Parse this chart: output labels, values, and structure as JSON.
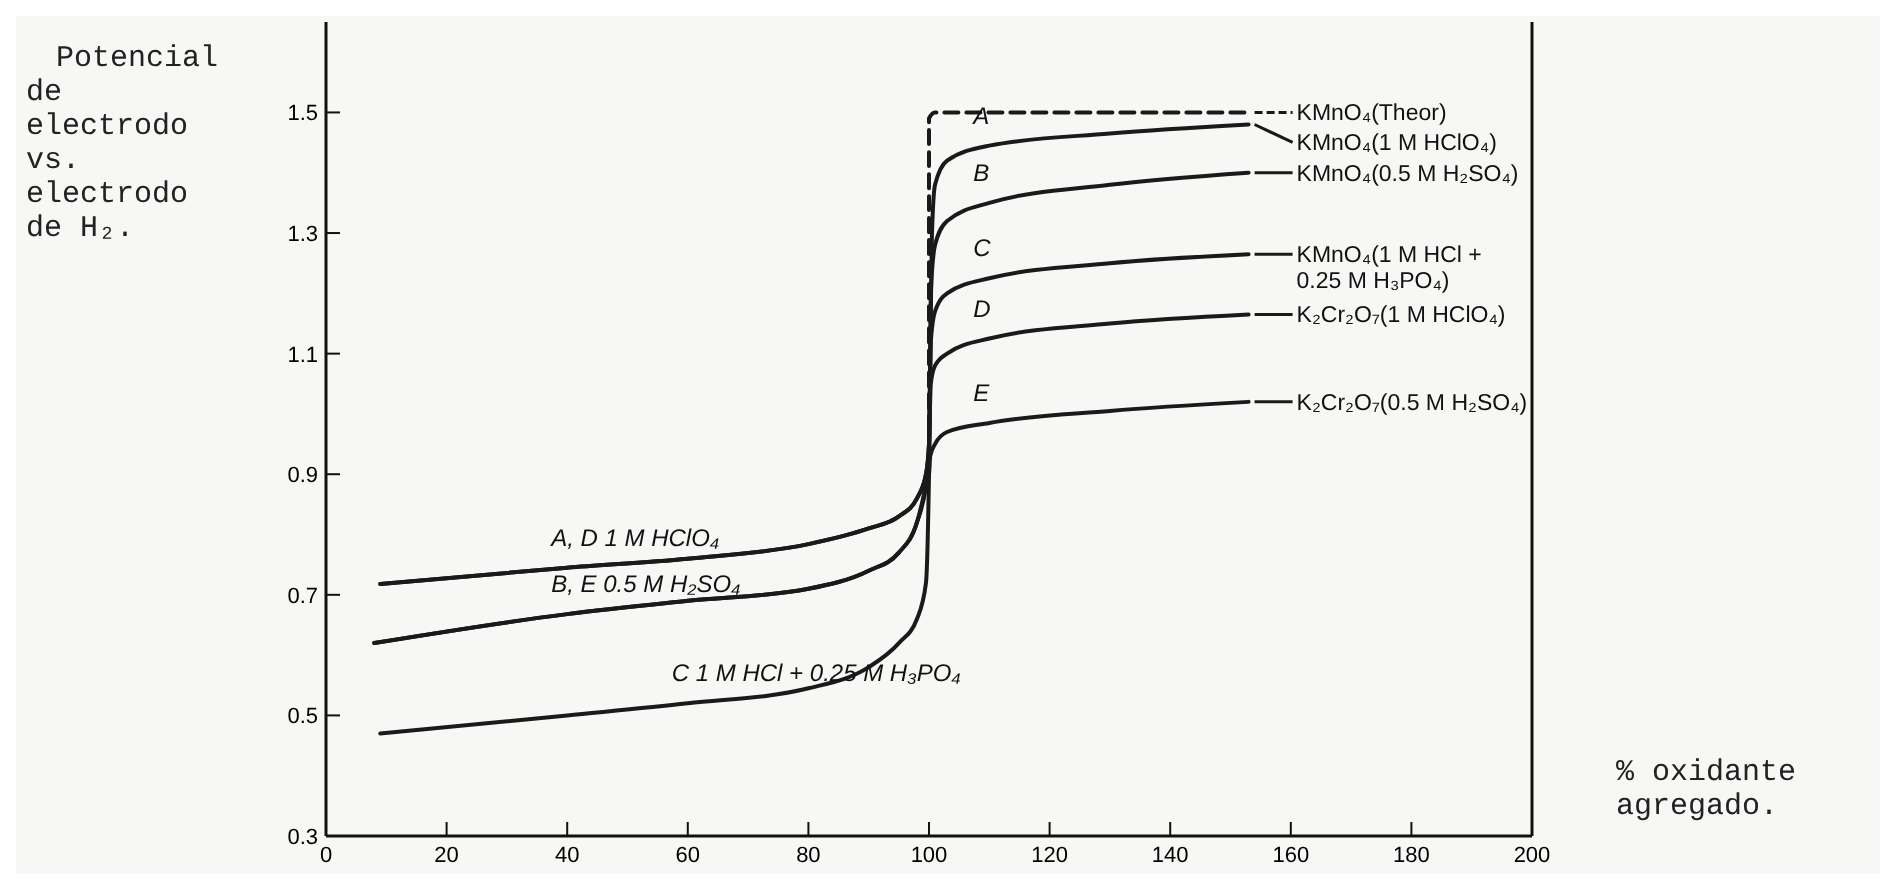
{
  "chart_data": {
    "type": "line",
    "ylabel": "Potencial de electrodo vs. electrodo de H₂.",
    "xlabel": "% oxidante agregado.",
    "xlim": [
      0,
      200
    ],
    "ylim": [
      0.3,
      1.65
    ],
    "xticks": [
      0,
      20,
      40,
      60,
      80,
      100,
      120,
      140,
      160,
      180,
      200
    ],
    "yticks": [
      0.3,
      0.5,
      0.7,
      0.9,
      1.1,
      1.3,
      1.5
    ],
    "grid": false,
    "legend": "right",
    "marker": "none",
    "color": "#1a1a1a",
    "series": [
      {
        "name": "KMnO₄(Theor)",
        "line_style": "dashed",
        "x": [
          100,
          100,
          101,
          153
        ],
        "values": [
          0.9,
          1.49,
          1.5,
          1.5
        ]
      },
      {
        "name": "KMnO₄(1 M HClO₄)",
        "line_style": "solid",
        "x": [
          9,
          40,
          60,
          80,
          90,
          95,
          98,
          99.5,
          100,
          100.5,
          101,
          103,
          110,
          130,
          153
        ],
        "values": [
          0.718,
          0.745,
          0.76,
          0.784,
          0.81,
          0.83,
          0.86,
          0.9,
          0.95,
          1.3,
          1.38,
          1.42,
          1.445,
          1.465,
          1.48
        ]
      },
      {
        "name": "KMnO₄(0.5 M H₂SO₄)",
        "line_style": "solid",
        "x": [
          8,
          40,
          60,
          80,
          90,
          95,
          98,
          99.5,
          100,
          100.3,
          101,
          103,
          110,
          130,
          153
        ],
        "values": [
          0.62,
          0.668,
          0.69,
          0.71,
          0.74,
          0.77,
          0.82,
          0.88,
          0.92,
          1.2,
          1.28,
          1.32,
          1.35,
          1.38,
          1.4
        ]
      },
      {
        "name": "KMnO₄(1 M HCl + 0.25 M H₃PO₄)",
        "line_style": "solid",
        "x": [
          9,
          40,
          60,
          80,
          90,
          95,
          98,
          99.5,
          100,
          100.3,
          101,
          103,
          110,
          130,
          153
        ],
        "values": [
          0.47,
          0.5,
          0.52,
          0.545,
          0.58,
          0.62,
          0.66,
          0.72,
          0.9,
          1.12,
          1.17,
          1.2,
          1.225,
          1.25,
          1.265
        ]
      },
      {
        "name": "K₂Cr₂O₇(1 M HClO₄)",
        "line_style": "solid",
        "x": [
          9,
          40,
          60,
          80,
          90,
          95,
          98,
          99.5,
          100,
          100.3,
          101,
          103,
          110,
          130,
          153
        ],
        "values": [
          0.718,
          0.745,
          0.76,
          0.784,
          0.81,
          0.83,
          0.86,
          0.9,
          0.95,
          1.05,
          1.08,
          1.1,
          1.125,
          1.15,
          1.165
        ]
      },
      {
        "name": "K₂Cr₂O₇(0.5 M H₂SO₄)",
        "line_style": "solid",
        "x": [
          8,
          40,
          60,
          80,
          90,
          95,
          98,
          99.5,
          100,
          100.2,
          101,
          103,
          110,
          130,
          153
        ],
        "values": [
          0.62,
          0.668,
          0.69,
          0.71,
          0.74,
          0.77,
          0.82,
          0.88,
          0.9,
          0.93,
          0.95,
          0.97,
          0.985,
          1.005,
          1.02
        ]
      }
    ],
    "annotations": [
      {
        "text": "A",
        "x": 110,
        "y": 1.445
      },
      {
        "text": "B",
        "x": 110,
        "y": 1.35
      },
      {
        "text": "C",
        "x": 110,
        "y": 1.225
      },
      {
        "text": "D",
        "x": 110,
        "y": 1.125
      },
      {
        "text": "E",
        "x": 110,
        "y": 0.985
      },
      {
        "text": "A, D 1 M HClO₄",
        "x": 40,
        "y": 0.745
      },
      {
        "text": "B, E 0.5 M H₂SO₄",
        "x": 40,
        "y": 0.668
      },
      {
        "text": "C 1 M HCl + 0.25 M H₃PO₄",
        "x": 60,
        "y": 0.52
      }
    ]
  }
}
